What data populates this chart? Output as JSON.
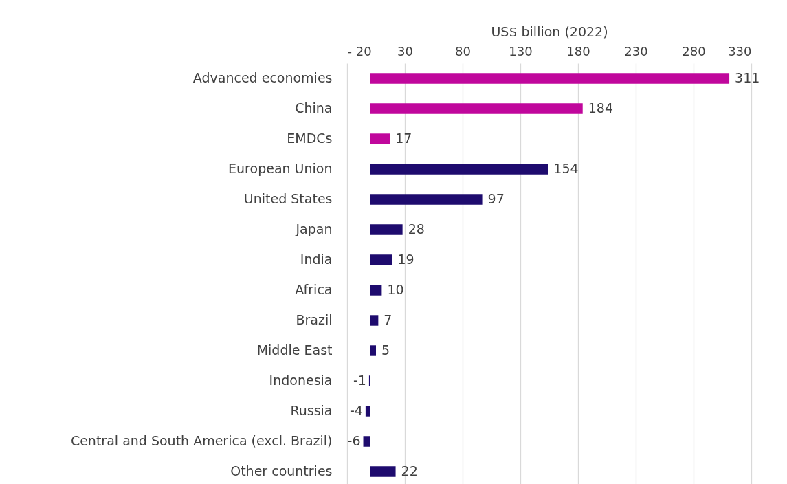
{
  "chart_data": {
    "type": "bar",
    "orientation": "horizontal",
    "xlabel": "US$ billion (2022)",
    "categories": [
      "Advanced economies",
      "China",
      "EMDCs",
      "European Union",
      "United States",
      "Japan",
      "India",
      "Africa",
      "Brazil",
      "Middle East",
      "Indonesia",
      "Russia",
      "Central and South America (excl. Brazil)",
      "Other countries"
    ],
    "values": [
      311,
      184,
      17,
      154,
      97,
      28,
      19,
      10,
      7,
      5,
      -1,
      -4,
      -6,
      22
    ],
    "colors": [
      "#c0079c",
      "#c0079c",
      "#c0079c",
      "#1e0b6e",
      "#1e0b6e",
      "#1e0b6e",
      "#1e0b6e",
      "#1e0b6e",
      "#1e0b6e",
      "#1e0b6e",
      "#1e0b6e",
      "#1e0b6e",
      "#1e0b6e",
      "#1e0b6e"
    ],
    "xlim": [
      -20,
      330
    ],
    "xticks": [
      {
        "value": -20,
        "label": "- 20"
      },
      30,
      80,
      130,
      180,
      230,
      280,
      330
    ],
    "grid": "x",
    "data_labels": true
  }
}
